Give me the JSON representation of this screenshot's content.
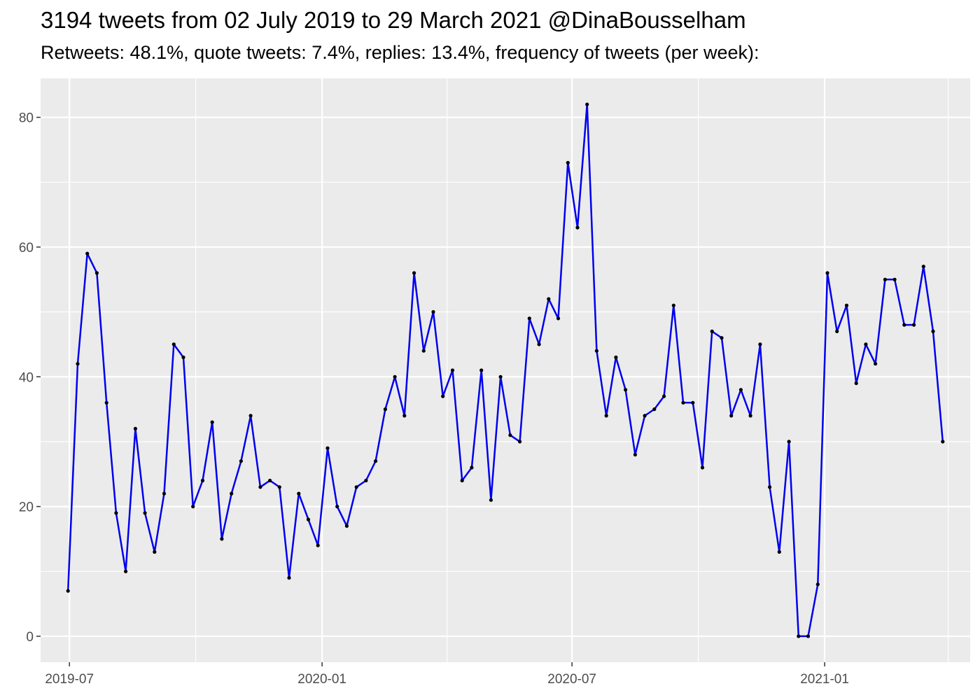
{
  "title": "3194 tweets from 02 July 2019 to 29 March 2021 @DinaBousselham",
  "subtitle": "Retweets: 48.1%, quote tweets: 7.4%, replies: 13.4%, frequency of tweets (per week):",
  "chart_data": {
    "type": "line",
    "title": "3194 tweets from 02 July 2019 to 29 March 2021 @DinaBousselham",
    "subtitle": "Retweets: 48.1%, quote tweets: 7.4%, replies: 13.4%, frequency of tweets (per week):",
    "xlabel": "",
    "ylabel": "",
    "x_start": "2019-06-30",
    "x_step_days": 7,
    "xlim": [
      "2019-06-10",
      "2021-04-17"
    ],
    "ylim": [
      -4,
      86
    ],
    "x_ticks": [
      {
        "date": "2019-07-01",
        "label": "2019-07"
      },
      {
        "date": "2020-01-01",
        "label": "2020-01"
      },
      {
        "date": "2020-07-01",
        "label": "2020-07"
      },
      {
        "date": "2021-01-01",
        "label": "2021-01"
      }
    ],
    "x_minor_ticks": [
      "2019-10-01",
      "2020-04-01",
      "2020-10-01",
      "2021-04-01"
    ],
    "y_ticks": [
      0,
      20,
      40,
      60,
      80
    ],
    "y_minor_ticks": [
      10,
      30,
      50,
      70
    ],
    "grid": true,
    "line_color": "#0000ee",
    "point_color": "#000000",
    "panel_bg": "#ebebeb",
    "series": [
      {
        "values": [
          7,
          42,
          59,
          56,
          36,
          19,
          10,
          32,
          19,
          13,
          22,
          45,
          43,
          20,
          24,
          33,
          15,
          22,
          27,
          34,
          23,
          24,
          23,
          9,
          22,
          18,
          14,
          29,
          20,
          17,
          23,
          24,
          27,
          35,
          40,
          34,
          56,
          44,
          50,
          37,
          41,
          24,
          26,
          41,
          21,
          40,
          31,
          30,
          49,
          45,
          52,
          49,
          73,
          63,
          82,
          44,
          34,
          43,
          38,
          28,
          34,
          35,
          37,
          51,
          36,
          36,
          26,
          47,
          46,
          34,
          38,
          34,
          45,
          23,
          13,
          30,
          0,
          0,
          8,
          56,
          47,
          51,
          39,
          45,
          42,
          55,
          55,
          48,
          48,
          57,
          47,
          30
        ]
      }
    ]
  }
}
